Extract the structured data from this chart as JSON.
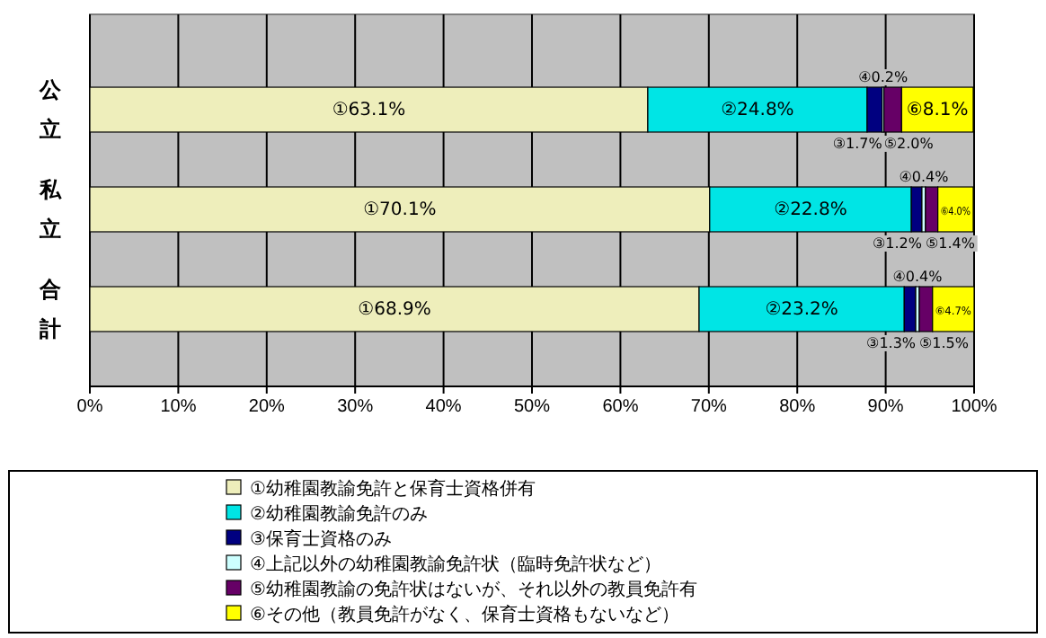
{
  "chart_data": {
    "type": "bar",
    "orientation": "horizontal",
    "stacked": true,
    "categories": [
      "公立",
      "私立",
      "合計"
    ],
    "xlim": [
      0,
      100
    ],
    "xticks": [
      {
        "value": 0,
        "label": "0%"
      },
      {
        "value": 10,
        "label": "10%"
      },
      {
        "value": 20,
        "label": "20%"
      },
      {
        "value": 30,
        "label": "30%"
      },
      {
        "value": 40,
        "label": "40%"
      },
      {
        "value": 50,
        "label": "50%"
      },
      {
        "value": 60,
        "label": "60%"
      },
      {
        "value": 70,
        "label": "70%"
      },
      {
        "value": 80,
        "label": "80%"
      },
      {
        "value": 90,
        "label": "90%"
      },
      {
        "value": 100,
        "label": "100%"
      }
    ],
    "grid": "x",
    "legend": "bottom",
    "series": [
      {
        "name": "①幼稚園教諭免許と保育士資格併有",
        "color": "#eeeebb",
        "values": [
          63.1,
          70.1,
          68.9
        ],
        "value_labels": [
          "①63.1%",
          "①70.1%",
          "①68.9%"
        ]
      },
      {
        "name": "②幼稚園教諭免許のみ",
        "color": "#00e5e5",
        "values": [
          24.8,
          22.8,
          23.2
        ],
        "value_labels": [
          "②24.8%",
          "②22.8%",
          "②23.2%"
        ]
      },
      {
        "name": "③保育士資格のみ",
        "color": "#000080",
        "values": [
          1.7,
          1.2,
          1.3
        ],
        "value_labels": [
          "③1.7%",
          "③1.2%",
          "③1.3%"
        ]
      },
      {
        "name": "④上記以外の幼稚園教諭免許状（臨時免許状など）",
        "color": "#ccffff",
        "values": [
          0.2,
          0.4,
          0.4
        ],
        "value_labels": [
          "④0.2%",
          "④0.4%",
          "④0.4%"
        ]
      },
      {
        "name": "⑤幼稚園教諭の免許状はないが、それ以外の教員免許有",
        "color": "#660066",
        "values": [
          2.0,
          1.4,
          1.5
        ],
        "value_labels": [
          "⑤2.0%",
          "⑤1.4%",
          "⑤1.5%"
        ]
      },
      {
        "name": "⑥その他（教員免許がなく、保育士資格もないなど）",
        "color": "#ffff00",
        "values": [
          8.1,
          4.0,
          4.7
        ],
        "value_labels": [
          "⑥8.1%",
          "⑥4.0%",
          "⑥4.7%"
        ]
      }
    ]
  }
}
